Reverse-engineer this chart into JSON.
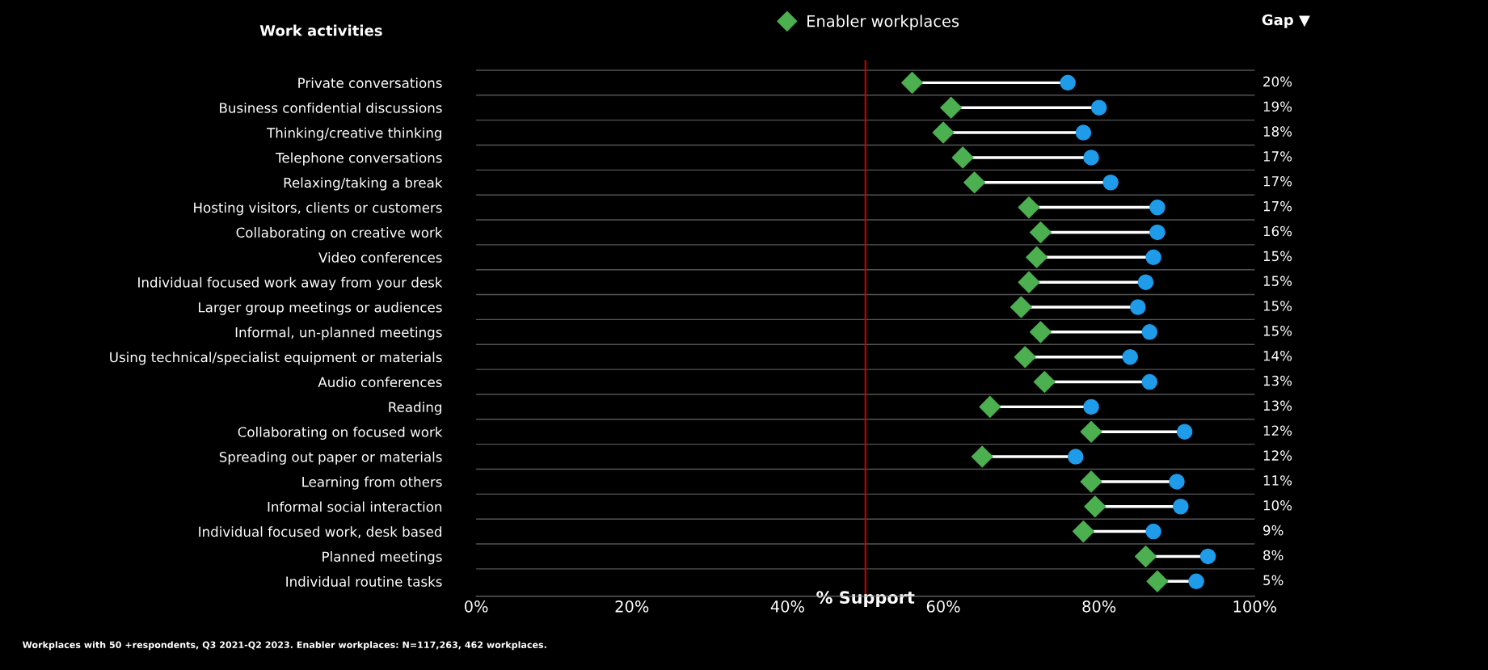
{
  "chart_data": {
    "type": "scatter",
    "orientation": "horizontal",
    "ylabel": "Work activities",
    "xlabel": "% Support",
    "categories": [
      "Private conversations",
      "Business confidential discussions",
      "Thinking/creative thinking",
      "Telephone conversations",
      "Relaxing/taking a break",
      "Hosting visitors, clients or customers",
      "Collaborating on creative work",
      "Video conferences",
      "Individual focused work away from your desk",
      "Larger group meetings or audiences",
      "Informal, un-planned meetings",
      "Using technical/specialist equipment or materials",
      "Audio conferences",
      "Reading",
      "Collaborating on focused work",
      "Spreading out paper or materials",
      "Learning from others",
      "Informal social interaction",
      "Individual focused work, desk based",
      "Planned meetings",
      "Individual routine tasks"
    ],
    "series": [
      {
        "name": "Enabler workplaces",
        "color": "#4caf50",
        "marker": "diamond",
        "values": [
          56,
          61,
          60,
          62.5,
          64,
          71,
          72.5,
          72,
          71,
          70,
          72.5,
          70.5,
          73,
          66,
          79,
          65,
          79,
          79.5,
          78,
          86,
          87.5
        ]
      },
      {
        "color": "#1e9be9",
        "marker": "circle",
        "values": [
          76,
          80,
          78,
          79,
          81.5,
          87.5,
          87.5,
          87,
          86,
          85,
          86.5,
          84,
          86.5,
          79,
          91,
          77,
          90,
          90.5,
          87,
          94,
          92.5
        ]
      }
    ],
    "xlim": [
      0,
      100
    ],
    "xticks": [
      {
        "value": 0,
        "label": "0%"
      },
      {
        "value": 20,
        "label": "20%"
      },
      {
        "value": 40,
        "label": "40%"
      },
      {
        "value": 60,
        "label": "60%"
      },
      {
        "value": 80,
        "label": "80%"
      },
      {
        "value": 100,
        "label": "100%"
      }
    ],
    "ref_lines": [
      {
        "axis": "x",
        "value": 50,
        "color": "#cc0000"
      }
    ],
    "grid": "y",
    "legend": "top",
    "annotations": [
      "Gap ▼",
      "20%",
      "19%",
      "18%",
      "17%",
      "17%",
      "17%",
      "16%",
      "15%",
      "15%",
      "15%",
      "15%",
      "14%",
      "13%",
      "13%",
      "12%",
      "12%",
      "11%",
      "10%",
      "9%",
      "8%",
      "5%",
      "Workplaces with 50 +respondents, Q3 2021-Q2 2023. Enabler workplaces: N=117,263, 462 workplaces."
    ]
  }
}
